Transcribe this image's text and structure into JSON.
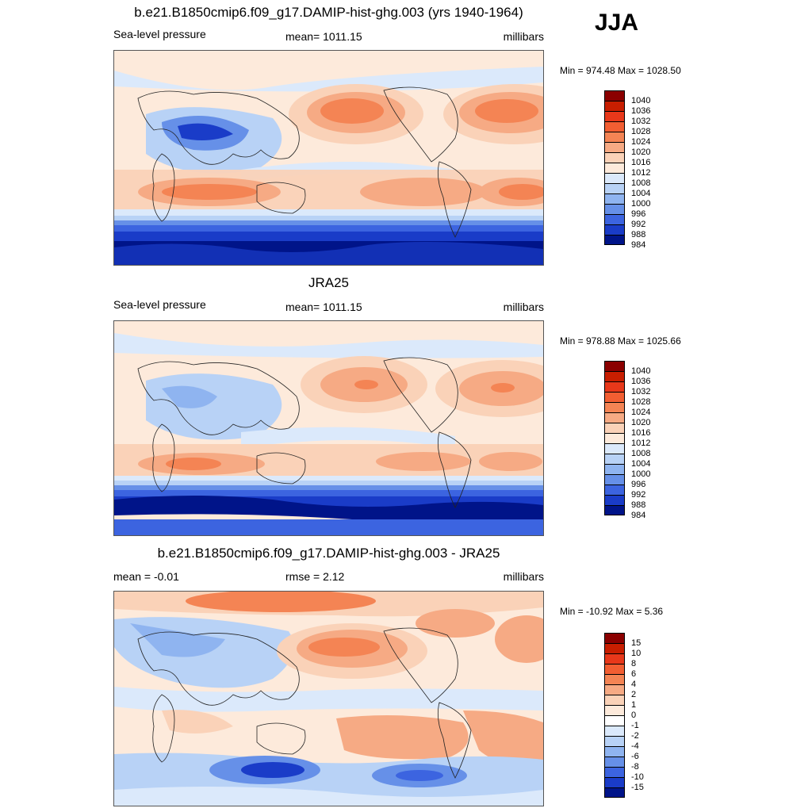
{
  "season": "JJA",
  "panels": [
    {
      "title": "b.e21.B1850cmip6.f09_g17.DAMIP-hist-ghg.003 (yrs 1940-1964)",
      "left_label": "Sea-level pressure",
      "center_label": "mean= 1011.15",
      "right_label": "millibars",
      "minmax": "Min = 974.48 Max = 1028.50",
      "colorbar": [
        "1040",
        "1036",
        "1032",
        "1028",
        "1024",
        "1020",
        "1016",
        "1012",
        "1008",
        "1004",
        "1000",
        "996",
        "992",
        "988",
        "984"
      ],
      "colors": [
        "#8b0000",
        "#c81e00",
        "#e8381a",
        "#f25e32",
        "#f48454",
        "#f6aa84",
        "#fad2b8",
        "#fdeadb",
        "#dbe9fb",
        "#b8d2f6",
        "#8fb4f0",
        "#6690e8",
        "#3c64e0",
        "#1a3cc8",
        "#001489"
      ]
    },
    {
      "title": "JRA25",
      "left_label": "Sea-level pressure",
      "center_label": "mean= 1011.15",
      "right_label": "millibars",
      "minmax": "Min = 978.88 Max = 1025.66",
      "colorbar": [
        "1040",
        "1036",
        "1032",
        "1028",
        "1024",
        "1020",
        "1016",
        "1012",
        "1008",
        "1004",
        "1000",
        "996",
        "992",
        "988",
        "984"
      ],
      "colors": [
        "#8b0000",
        "#c81e00",
        "#e8381a",
        "#f25e32",
        "#f48454",
        "#f6aa84",
        "#fad2b8",
        "#fdeadb",
        "#dbe9fb",
        "#b8d2f6",
        "#8fb4f0",
        "#6690e8",
        "#3c64e0",
        "#1a3cc8",
        "#001489"
      ]
    },
    {
      "title": "b.e21.B1850cmip6.f09_g17.DAMIP-hist-ghg.003 - JRA25",
      "left_label": "mean =  -0.01",
      "center_label": "rmse =    2.12",
      "right_label": "millibars",
      "minmax": "Min = -10.92 Max =   5.36",
      "colorbar": [
        "15",
        "10",
        "8",
        "6",
        "4",
        "2",
        "1",
        "0",
        "-1",
        "-2",
        "-4",
        "-6",
        "-8",
        "-10",
        "-15"
      ],
      "colors": [
        "#8b0000",
        "#c81e00",
        "#e8381a",
        "#f25e32",
        "#f48454",
        "#f6aa84",
        "#fad2b8",
        "#fdeadb",
        "#ffffff",
        "#dbe9fb",
        "#b8d2f6",
        "#8fb4f0",
        "#6690e8",
        "#3c64e0",
        "#1a3cc8",
        "#001489"
      ]
    }
  ]
}
